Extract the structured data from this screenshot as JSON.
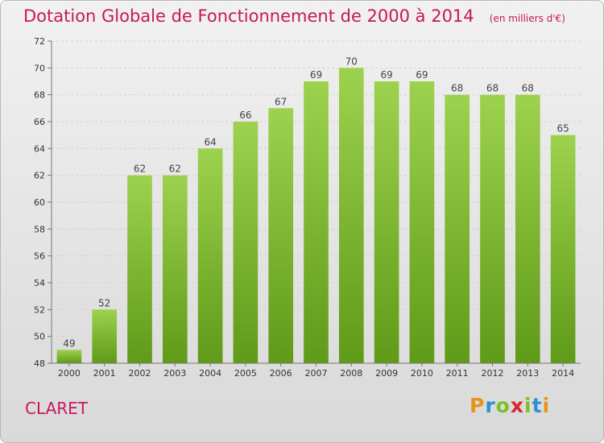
{
  "chart_data": {
    "type": "bar",
    "title": "Dotation Globale de Fonctionnement de 2000 à 2014",
    "unit_note": "(en milliers d'€)",
    "categories": [
      "2000",
      "2001",
      "2002",
      "2003",
      "2004",
      "2005",
      "2006",
      "2007",
      "2008",
      "2009",
      "2010",
      "2011",
      "2012",
      "2013",
      "2014"
    ],
    "values": [
      49,
      52,
      62,
      62,
      64,
      66,
      67,
      69,
      70,
      69,
      69,
      68,
      68,
      68,
      65
    ],
    "ylim": [
      48,
      72
    ],
    "yticks": [
      48,
      50,
      52,
      54,
      56,
      58,
      60,
      62,
      64,
      66,
      68,
      70,
      72
    ],
    "grid": true,
    "colors": {
      "bar_top": "#9dd24e",
      "bar_bottom": "#5f9a18",
      "title": "#c7175b"
    }
  },
  "footer": {
    "commune": "CLARET",
    "brand_letters": [
      {
        "ch": "P",
        "color": "#e8931d"
      },
      {
        "ch": "r",
        "color": "#2f8fd3"
      },
      {
        "ch": "o",
        "color": "#7bbf2a"
      },
      {
        "ch": "x",
        "color": "#d8262f"
      },
      {
        "ch": "i",
        "color": "#7bbf2a"
      },
      {
        "ch": "t",
        "color": "#2f8fd3"
      },
      {
        "ch": "i",
        "color": "#e8931d"
      }
    ]
  }
}
